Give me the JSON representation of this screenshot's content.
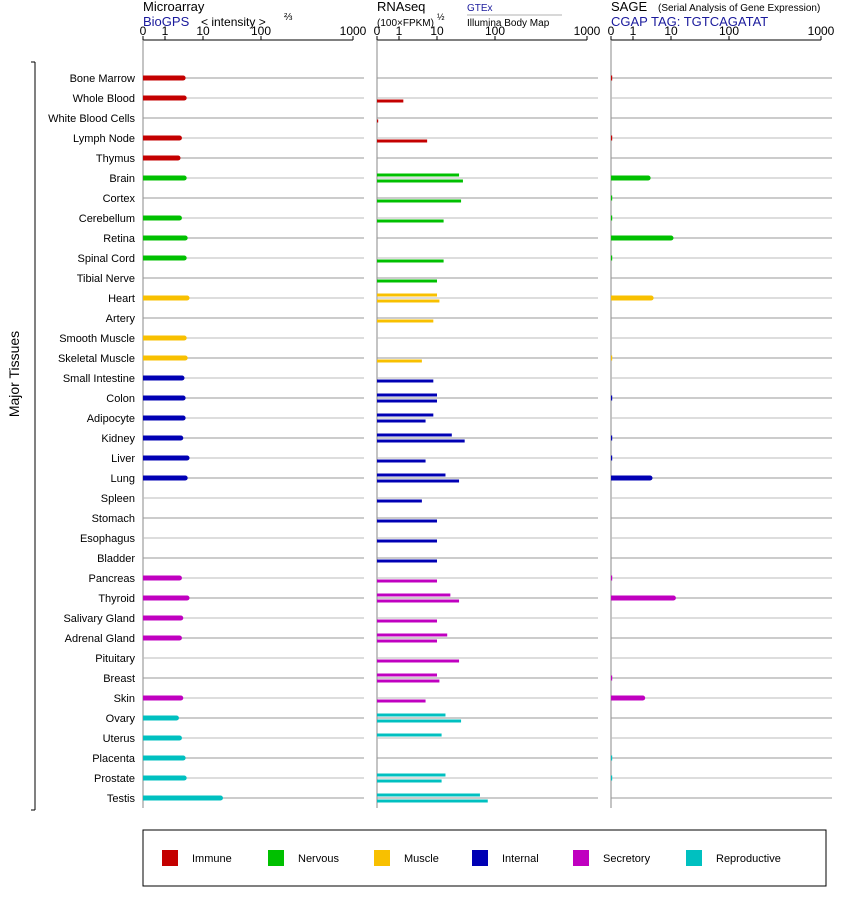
{
  "chart_data": {
    "type": "bar",
    "ylabel": "Major Tissues",
    "categories": [
      "Bone Marrow",
      "Whole Blood",
      "White Blood Cells",
      "Lymph Node",
      "Thymus",
      "Brain",
      "Cortex",
      "Cerebellum",
      "Retina",
      "Spinal Cord",
      "Tibial Nerve",
      "Heart",
      "Artery",
      "Smooth Muscle",
      "Skeletal Muscle",
      "Small Intestine",
      "Colon",
      "Adipocyte",
      "Kidney",
      "Liver",
      "Lung",
      "Spleen",
      "Stomach",
      "Esophagus",
      "Bladder",
      "Pancreas",
      "Thyroid",
      "Salivary Gland",
      "Adrenal Gland",
      "Pituitary",
      "Breast",
      "Skin",
      "Ovary",
      "Uterus",
      "Placenta",
      "Prostate",
      "Testis"
    ],
    "groups": [
      "Immune",
      "Immune",
      "Immune",
      "Immune",
      "Immune",
      "Nervous",
      "Nervous",
      "Nervous",
      "Nervous",
      "Nervous",
      "Nervous",
      "Muscle",
      "Muscle",
      "Muscle",
      "Muscle",
      "Internal",
      "Internal",
      "Internal",
      "Internal",
      "Internal",
      "Internal",
      "Internal",
      "Internal",
      "Internal",
      "Internal",
      "Secretory",
      "Secretory",
      "Secretory",
      "Secretory",
      "Secretory",
      "Secretory",
      "Secretory",
      "Reproductive",
      "Reproductive",
      "Reproductive",
      "Reproductive",
      "Reproductive"
    ],
    "panels": [
      {
        "id": "microarray",
        "title": "Microarray",
        "source": "BioGPS",
        "unit_label": "< intensity >",
        "unit_exponent": "⅔",
        "ticks": [
          "0",
          "1",
          "10",
          "100",
          "1000"
        ],
        "xlim": [
          0,
          1000
        ],
        "series": [
          {
            "values": [
              3.0,
              3.2,
              null,
              2.4,
              2.2,
              3.2,
              null,
              2.4,
              3.4,
              3.2,
              null,
              3.8,
              null,
              3.2,
              3.4,
              2.8,
              3.0,
              3.0,
              2.6,
              3.8,
              3.4,
              null,
              null,
              null,
              null,
              2.4,
              3.8,
              2.6,
              2.4,
              null,
              null,
              2.6,
              2.0,
              2.4,
              3.0,
              3.2,
              20
            ]
          }
        ]
      },
      {
        "id": "rnaseq",
        "title": "RNAseq",
        "unit_label": "(100×FPKM)",
        "unit_exponent": "½",
        "source_primary": "GTEx",
        "source_secondary": "Illumina Body Map",
        "ticks": [
          "0",
          "1",
          "10",
          "100",
          "1000"
        ],
        "xlim": [
          0,
          1000
        ],
        "series": [
          {
            "name": "GTEx",
            "values": [
              null,
              null,
              null,
              null,
              null,
              24,
              null,
              null,
              null,
              null,
              null,
              10,
              null,
              null,
              null,
              null,
              10,
              8,
              18,
              null,
              14,
              null,
              null,
              null,
              null,
              null,
              17,
              null,
              15,
              null,
              10,
              null,
              14,
              12,
              null,
              14,
              55
            ]
          },
          {
            "name": "Illumina Body Map",
            "values": [
              null,
              1.3,
              0.05,
              5.5,
              null,
              28,
              26,
              13,
              null,
              13,
              10,
              11,
              8,
              null,
              4.0,
              8,
              10,
              5,
              30,
              5,
              24,
              4.0,
              10,
              10,
              10,
              10,
              24,
              10,
              10,
              24,
              11,
              5,
              26,
              null,
              null,
              12,
              75
            ]
          }
        ]
      },
      {
        "id": "sage",
        "title": "SAGE",
        "subtitle": "(Serial Analysis of Gene Expression)",
        "tag_label": "CGAP TAG: TGTCAGATAT",
        "ticks": [
          "0",
          "1",
          "10",
          "100",
          "1000"
        ],
        "xlim": [
          0,
          1000
        ],
        "series": [
          {
            "values": [
              0.05,
              null,
              null,
              0.05,
              null,
              2.5,
              0.05,
              0.05,
              10,
              0.05,
              null,
              3.0,
              null,
              null,
              0.05,
              null,
              0.05,
              null,
              0.05,
              0.05,
              2.8,
              null,
              null,
              null,
              null,
              0.05,
              11,
              null,
              null,
              null,
              0.05,
              1.8,
              null,
              null,
              0.05,
              0.05,
              null
            ]
          }
        ]
      }
    ],
    "legend": [
      {
        "label": "Immune",
        "color": "#c40000"
      },
      {
        "label": "Nervous",
        "color": "#00c000"
      },
      {
        "label": "Muscle",
        "color": "#f8c000"
      },
      {
        "label": "Internal",
        "color": "#0000b4"
      },
      {
        "label": "Secretory",
        "color": "#c000c0"
      },
      {
        "label": "Reproductive",
        "color": "#00c0c0"
      }
    ],
    "scale": "log"
  }
}
